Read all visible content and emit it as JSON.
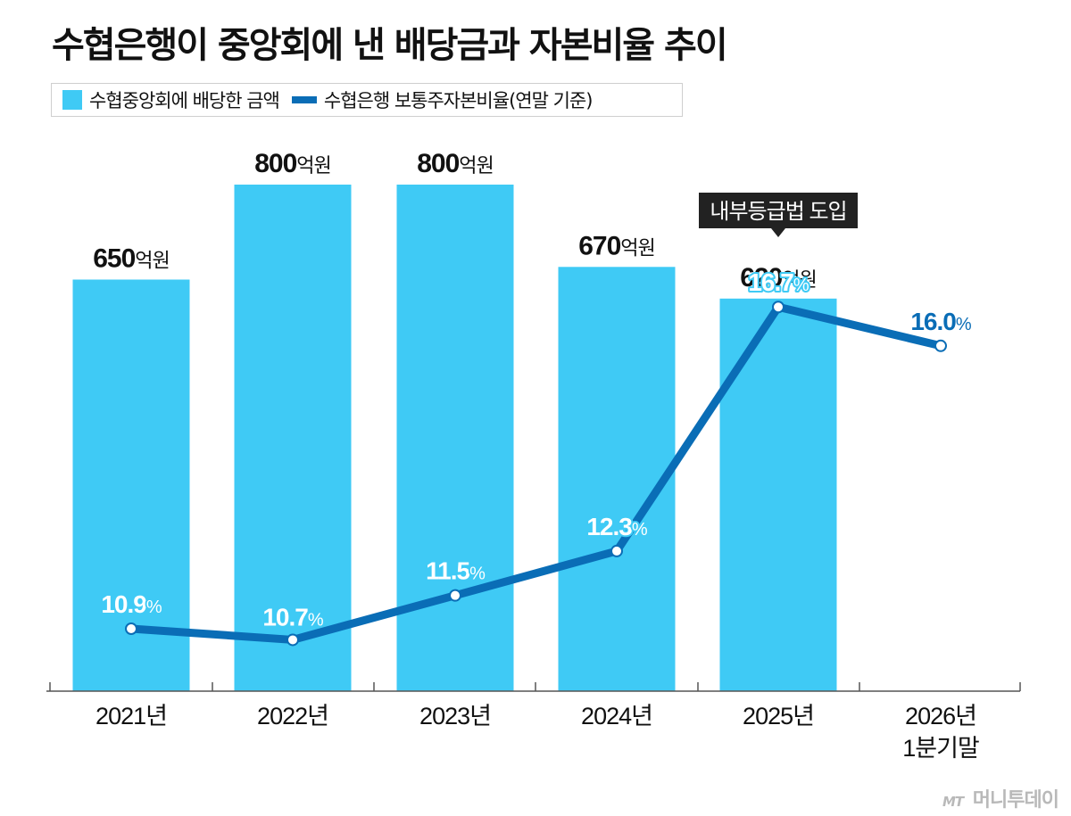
{
  "title": "수협은행이 중앙회에 낸 배당금과 자본비율 추이",
  "legend": {
    "bar_label": "수협중앙회에 배당한 금액",
    "line_label": "수협은행 보통주자본비율(연말 기준)"
  },
  "annotation": {
    "text": "내부등급법 도입",
    "category_index": 4
  },
  "watermark": {
    "logo_text": "MT",
    "brand": "머니투데이"
  },
  "colors": {
    "bar": "#3fcaf5",
    "line": "#0a6db6",
    "axis": "#555555",
    "callout_bg": "#222222"
  },
  "chart_data": {
    "type": "bar",
    "categories": [
      "2021년",
      "2022년",
      "2023년",
      "2024년",
      "2025년",
      "2026년\n1분기말"
    ],
    "series": [
      {
        "name": "수협중앙회에 배당한 금액",
        "type": "bar",
        "unit": "억원",
        "values": [
          650,
          800,
          800,
          670,
          620,
          null
        ],
        "labels": [
          "650",
          "800",
          "800",
          "670",
          "620",
          ""
        ]
      },
      {
        "name": "수협은행 보통주자본비율(연말 기준)",
        "type": "line",
        "unit": "%",
        "values": [
          10.9,
          10.7,
          11.5,
          12.3,
          16.7,
          16.0
        ],
        "labels": [
          "10.9",
          "10.7",
          "11.5",
          "12.3",
          "16.7",
          "16.0"
        ]
      }
    ],
    "title": "수협은행이 중앙회에 낸 배당금과 자본비율 추이",
    "xlabel": "",
    "ylabel": "",
    "grid": false,
    "legend_position": "top-left"
  }
}
